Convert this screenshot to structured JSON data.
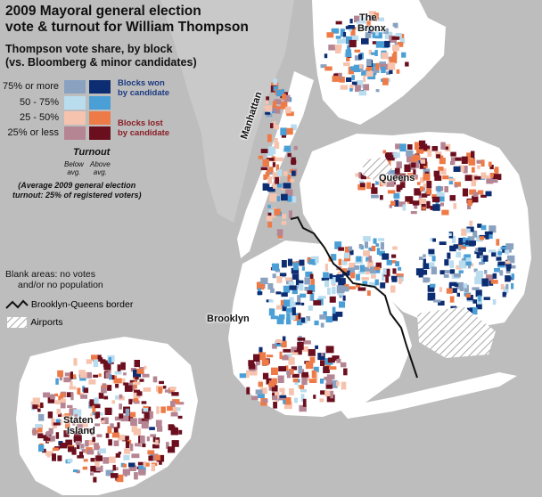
{
  "title_line1": "2009 Mayoral general election",
  "title_line2": "vote & turnout for William Thompson",
  "subtitle_line1": "Thompson vote share, by block",
  "subtitle_line2": "(vs. Bloomberg & minor candidates)",
  "legend": {
    "rows": [
      {
        "label": "75% or more",
        "colors": [
          "#8aa2bf",
          "#0d2d73"
        ]
      },
      {
        "label": "50 - 75%",
        "colors": [
          "#b9dcef",
          "#4a9fd6"
        ]
      },
      {
        "label": "25 - 50%",
        "colors": [
          "#f6c3ae",
          "#ee7b47"
        ]
      },
      {
        "label": "25% or less",
        "colors": [
          "#b58593",
          "#6b0f1f"
        ]
      }
    ],
    "won_line1": "Blocks won",
    "won_line2": "by candidate",
    "lost_line1": "Blocks lost",
    "lost_line2": "by candidate",
    "won_color": "#1b3a82",
    "lost_color": "#8a1d25",
    "turnout_title": "Turnout",
    "below_line1": "Below",
    "below_line2": "avg.",
    "above_line1": "Above",
    "above_line2": "avg.",
    "avg_line1": "(Average 2009 general election",
    "avg_line2": "turnout: 25% of registered voters)",
    "blank_line1": "Blank areas: no votes",
    "blank_line2": "and/or no population",
    "border_label": "Brooklyn-Queens border",
    "airports_label": "Airports"
  },
  "places": {
    "bronx_line1": "The",
    "bronx_line2": "Bronx",
    "manhattan": "Manhattan",
    "queens": "Queens",
    "brooklyn": "Brooklyn",
    "staten_line1": "Staten",
    "staten_line2": "Island"
  },
  "colors": {
    "background": "#bdbdbd",
    "land_blank": "#ffffff",
    "water": "#bdbdbd"
  }
}
